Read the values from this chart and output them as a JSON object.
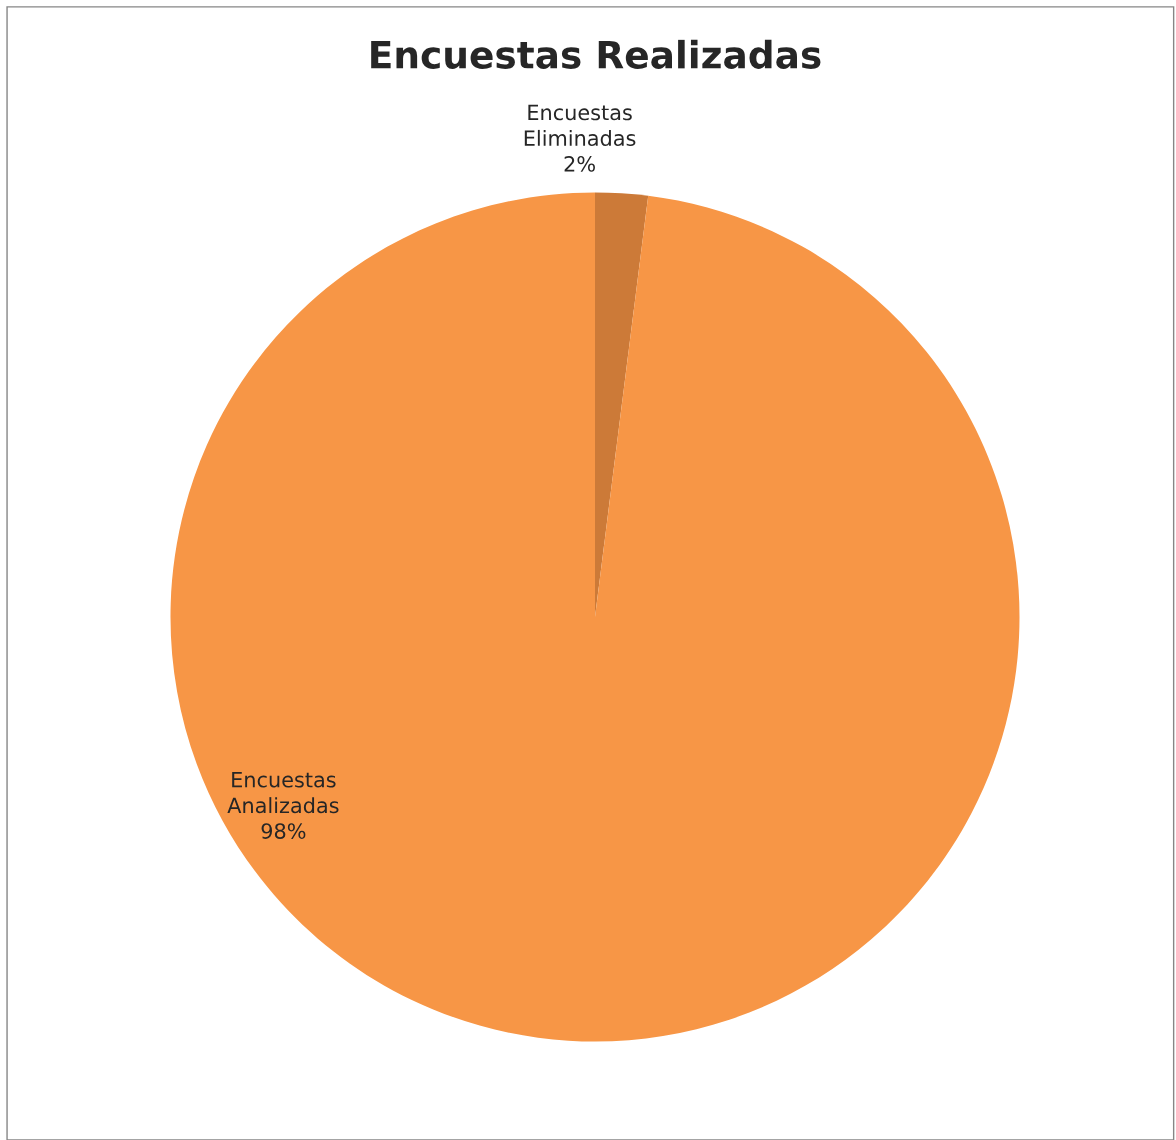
{
  "chart_data": {
    "type": "pie",
    "title": "Encuestas Realizadas",
    "categories": [
      "Encuestas Eliminadas",
      "Encuestas Analizadas"
    ],
    "values": [
      2,
      98
    ],
    "colors": [
      "#cc7a38",
      "#f79646"
    ],
    "value_labels": [
      "2%",
      "98%"
    ],
    "legend": false
  }
}
